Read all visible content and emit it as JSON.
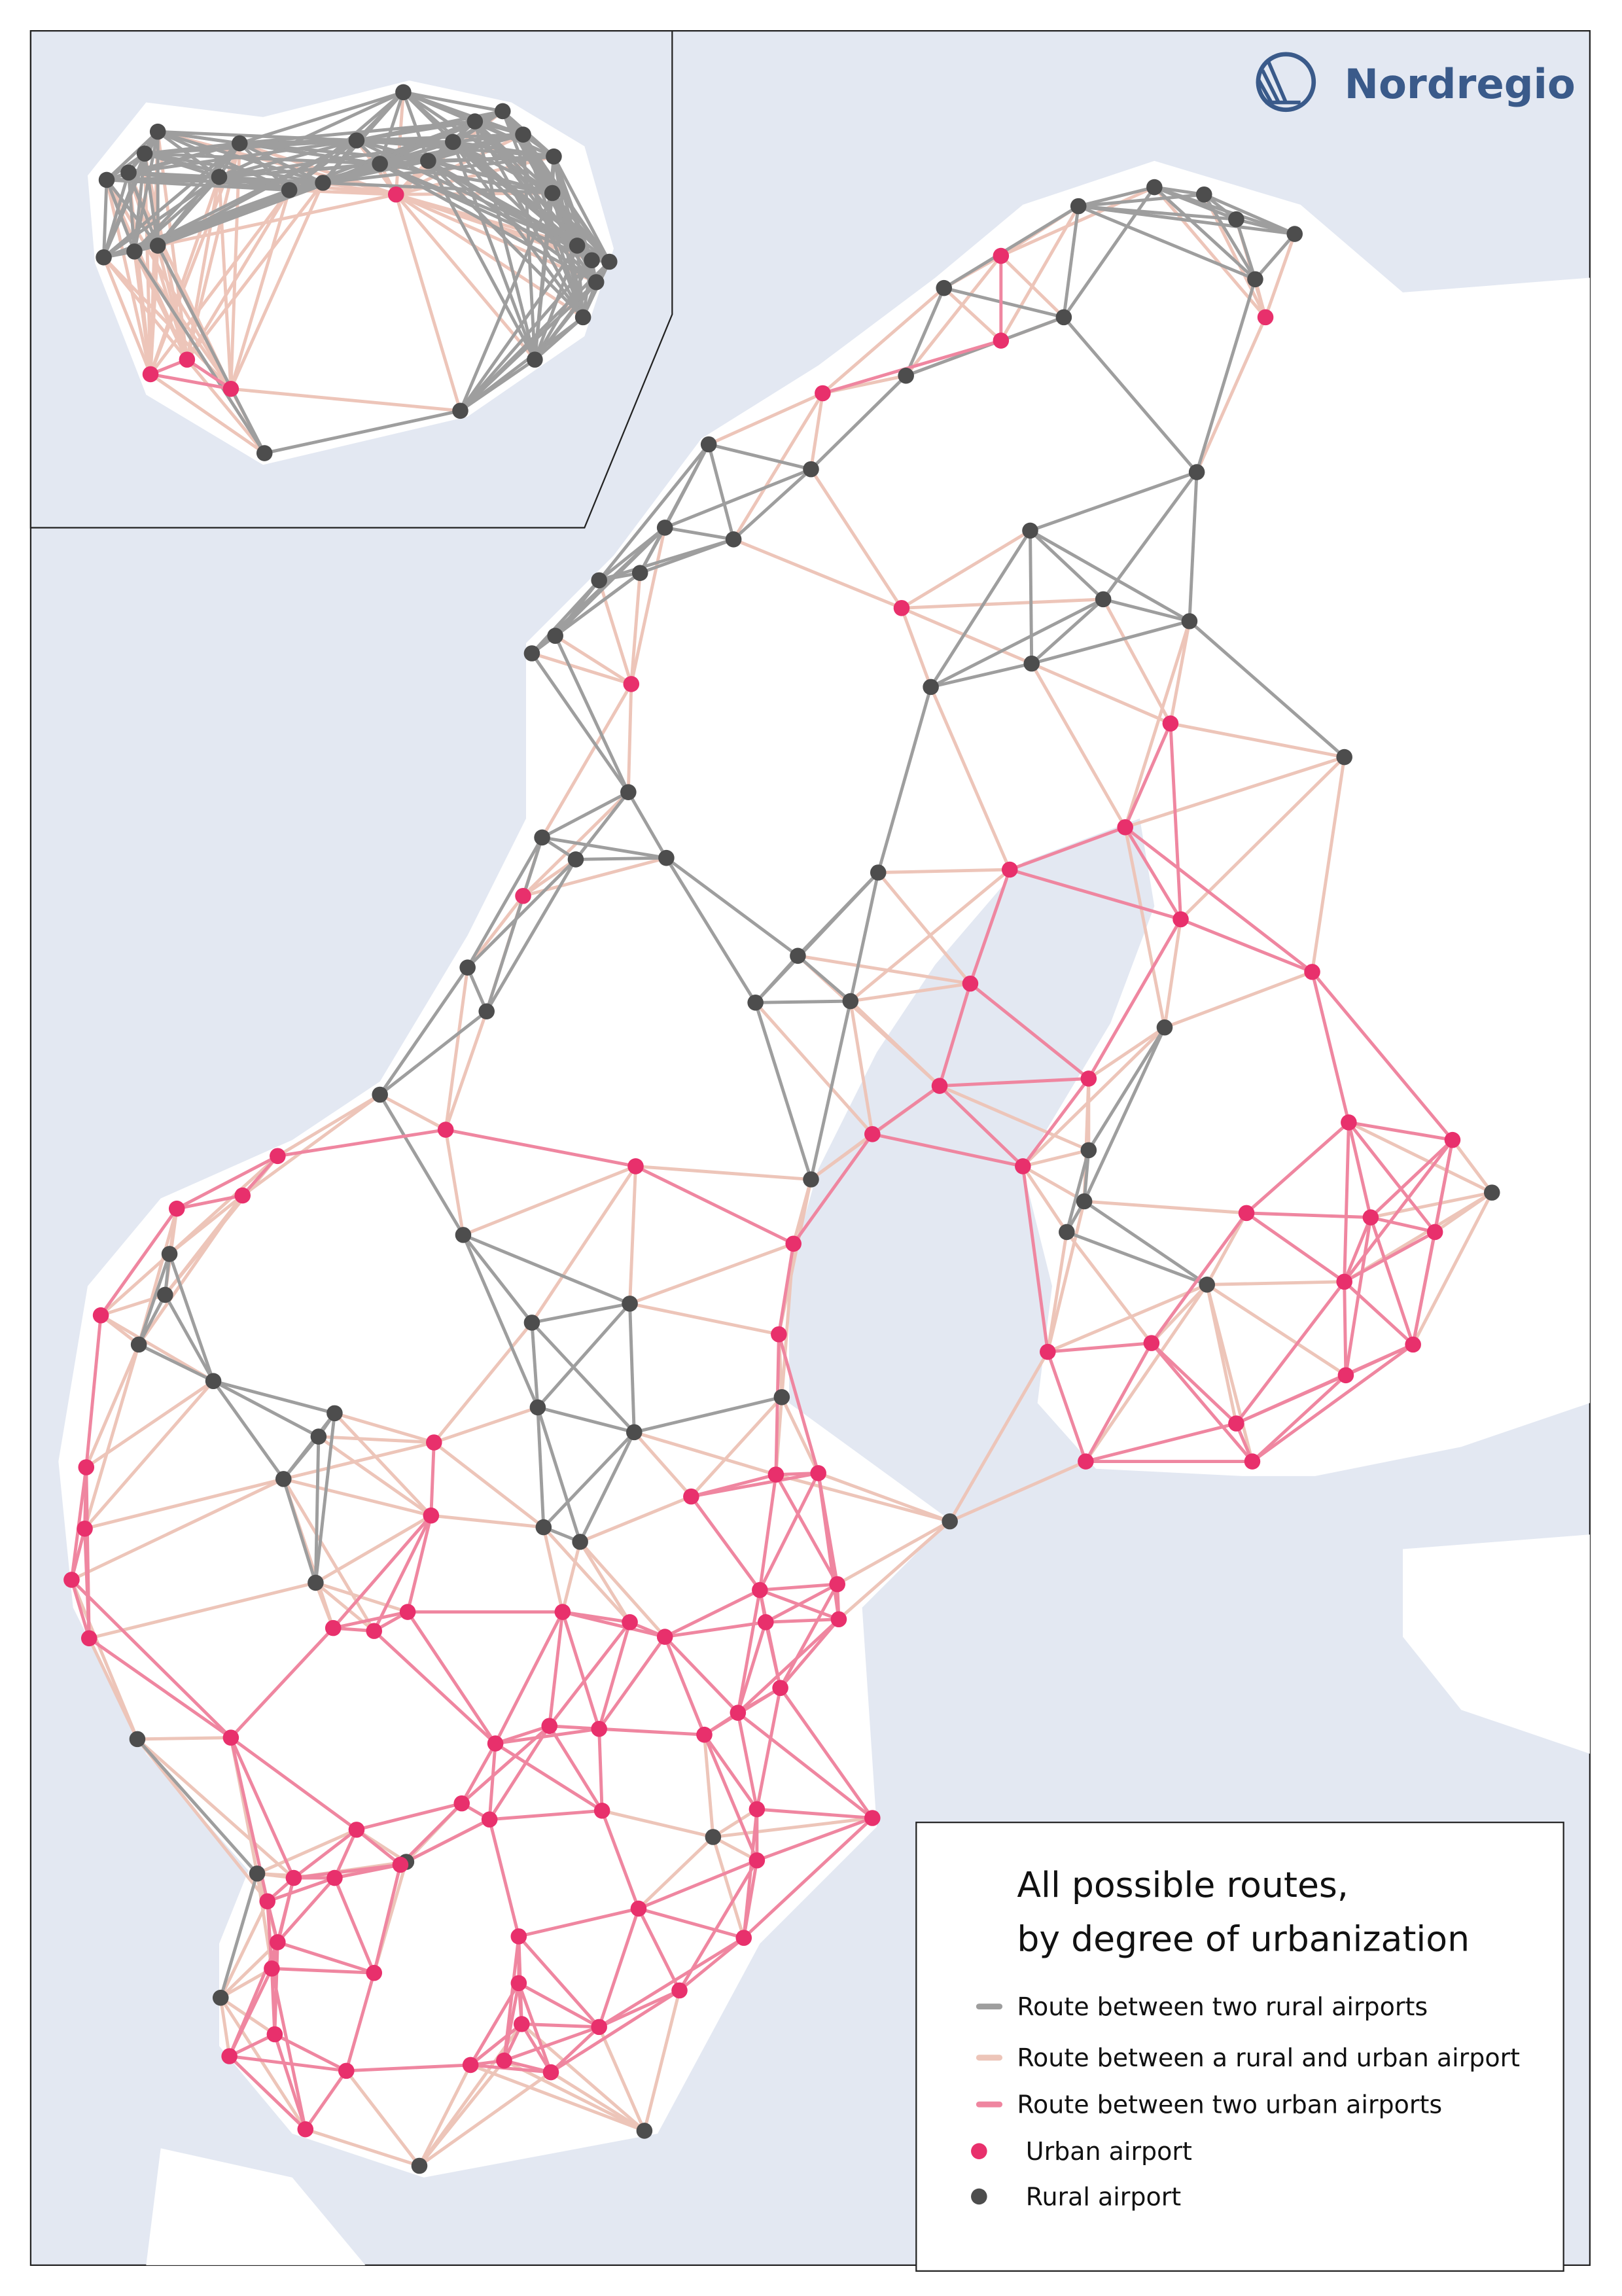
{
  "logo": {
    "text": "Nordregio",
    "color": "#3a5a8a"
  },
  "legend": {
    "title_line1": "All possible routes,",
    "title_line2": "by degree of urbanization",
    "items": [
      {
        "label": "Route between two rural airports",
        "kind": "line",
        "color": "#9e9e9e"
      },
      {
        "label": "Route between a rural and urban airport",
        "kind": "line",
        "color": "#edc5b9"
      },
      {
        "label": "Route between two urban airports",
        "kind": "line",
        "color": "#ef86a0"
      },
      {
        "label": "Urban airport",
        "kind": "dot",
        "color": "#e8306c"
      },
      {
        "label": "Rural airport",
        "kind": "dot",
        "color": "#4d4d4d"
      }
    ]
  },
  "colors": {
    "sea": "#e3e8f2",
    "land": "#ffffff",
    "rural_route": "#9e9e9e",
    "mixed_route": "#edc5b9",
    "urban_route": "#ef86a0",
    "urban_airport": "#e8306c",
    "rural_airport": "#4d4d4d"
  }
}
